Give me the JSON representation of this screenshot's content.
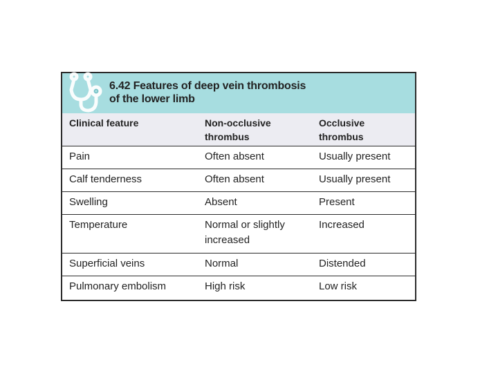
{
  "header": {
    "title_line1": "6.42  Features of deep vein thrombosis",
    "title_line2": "of the lower limb",
    "background_color": "#a7dde0",
    "icon": "stethoscope-icon"
  },
  "table": {
    "columns": [
      {
        "line1": "Clinical feature",
        "line2": ""
      },
      {
        "line1": "Non-occlusive",
        "line2": "thrombus"
      },
      {
        "line1": "Occlusive",
        "line2": "thrombus"
      }
    ],
    "rows": [
      {
        "feature": "Pain",
        "non_occlusive": "Often absent",
        "occlusive": "Usually present"
      },
      {
        "feature": "Calf tenderness",
        "non_occlusive": "Often absent",
        "occlusive": "Usually present"
      },
      {
        "feature": "Swelling",
        "non_occlusive": "Absent",
        "occlusive": "Present"
      },
      {
        "feature": "Temperature",
        "non_occlusive_line1": "Normal or slightly",
        "non_occlusive_line2": "increased",
        "occlusive": "Increased"
      },
      {
        "feature": "Superficial veins",
        "non_occlusive": "Normal",
        "occlusive": "Distended"
      },
      {
        "feature": "Pulmonary embolism",
        "non_occlusive": "High risk",
        "occlusive": "Low risk"
      }
    ]
  }
}
